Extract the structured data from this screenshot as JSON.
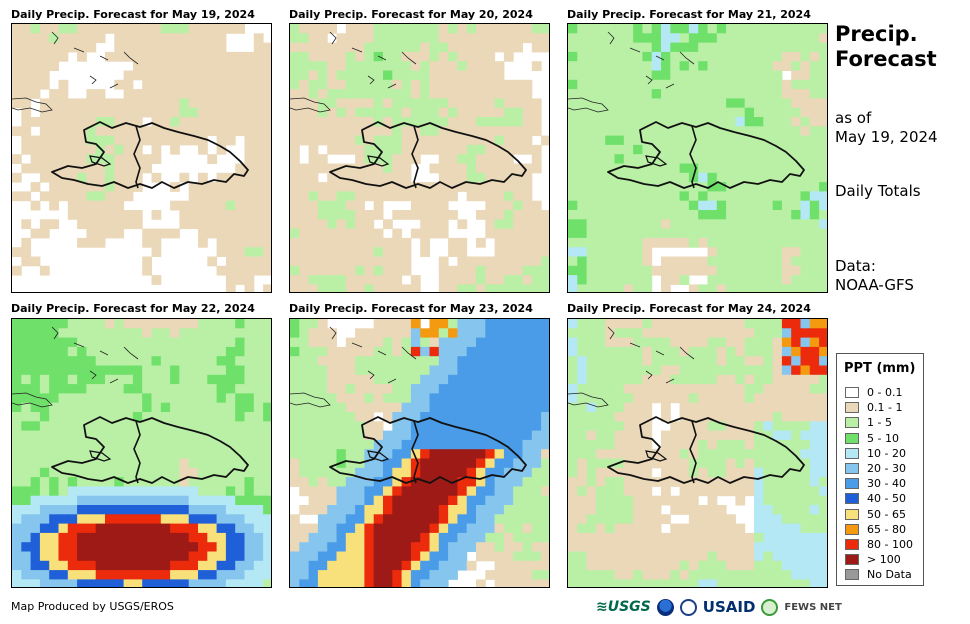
{
  "panels": [
    {
      "title": "Daily Precip. Forecast for May 19, 2024"
    },
    {
      "title": "Daily Precip. Forecast for May 20, 2024"
    },
    {
      "title": "Daily Precip. Forecast for May 21, 2024"
    },
    {
      "title": "Daily Precip. Forecast for May 22, 2024"
    },
    {
      "title": "Daily Precip. Forecast for May 23, 2024"
    },
    {
      "title": "Daily Precip. Forecast for May 24, 2024"
    }
  ],
  "side": {
    "title": "Precip. Forecast",
    "as_of_label": "as of",
    "as_of_date": "May 19, 2024",
    "totals": "Daily Totals",
    "data_label": "Data:",
    "data_source": "NOAA-GFS"
  },
  "legend": {
    "title": "PPT (mm)",
    "items": [
      {
        "label": "0 - 0.1",
        "color": "#ffffff"
      },
      {
        "label": "0.1 - 1",
        "color": "#ead8b8"
      },
      {
        "label": "1 - 5",
        "color": "#b9f0a6"
      },
      {
        "label": "5 - 10",
        "color": "#6fe06a"
      },
      {
        "label": "10 - 20",
        "color": "#b4e8f4"
      },
      {
        "label": "20 - 30",
        "color": "#86c6ee"
      },
      {
        "label": "30 - 40",
        "color": "#4a9ce8"
      },
      {
        "label": "40 - 50",
        "color": "#1f5fd8"
      },
      {
        "label": "50 - 65",
        "color": "#f8e07a"
      },
      {
        "label": "65 - 80",
        "color": "#f39a10"
      },
      {
        "label": "80 - 100",
        "color": "#ec2a0c"
      },
      {
        "label": "> 100",
        "color": "#9e1a16"
      },
      {
        "label": "No Data",
        "color": "#999999"
      }
    ]
  },
  "footer": {
    "credit": "Map Produced by USGS/EROS"
  },
  "logos": {
    "usgs": "≋USGS",
    "usaid": "USAID",
    "fews": "FEWS NET"
  }
}
